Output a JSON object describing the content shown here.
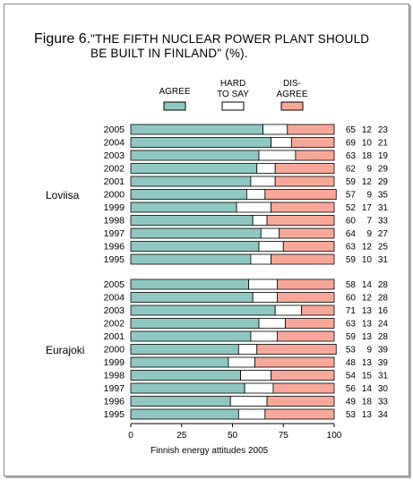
{
  "figure_label": "Figure 6.",
  "title_lines": [
    "\"THE FIFTH NUCLEAR POWER PLANT SHOULD",
    "BE BUILT IN FINLAND\" (%)."
  ],
  "legend": [
    {
      "lines": [
        "AGREE"
      ],
      "color": "#8fc7c2"
    },
    {
      "lines": [
        "HARD",
        "TO SAY"
      ],
      "color": "#ffffff"
    },
    {
      "lines": [
        "DIS-",
        "AGREE"
      ],
      "color": "#f8a898"
    }
  ],
  "footnote": "Finnish energy attitudes 2005",
  "chart_data": {
    "type": "bar",
    "orientation": "horizontal",
    "stacked": true,
    "xlim": [
      0,
      100
    ],
    "x_ticks": [
      "0",
      "25",
      "50",
      "75",
      "100"
    ],
    "groups": [
      {
        "name": "Loviisa",
        "categories": [
          "2005",
          "2004",
          "2003",
          "2002",
          "2001",
          "2000",
          "1999",
          "1998",
          "1997",
          "1996",
          "1995"
        ],
        "series": [
          {
            "name": "AGREE",
            "values": [
              65,
              69,
              63,
              62,
              59,
              57,
              52,
              60,
              64,
              63,
              59
            ]
          },
          {
            "name": "HARD TO SAY",
            "values": [
              12,
              10,
              18,
              9,
              12,
              9,
              17,
              7,
              9,
              12,
              10
            ]
          },
          {
            "name": "DIS-AGREE",
            "values": [
              23,
              21,
              19,
              29,
              29,
              35,
              31,
              33,
              27,
              25,
              31
            ]
          }
        ]
      },
      {
        "name": "Eurajoki",
        "categories": [
          "2005",
          "2004",
          "2003",
          "2002",
          "2001",
          "2000",
          "1999",
          "1998",
          "1997",
          "1996",
          "1995"
        ],
        "series": [
          {
            "name": "AGREE",
            "values": [
              58,
              60,
              71,
              63,
              59,
              53,
              48,
              54,
              56,
              49,
              53
            ]
          },
          {
            "name": "HARD TO SAY",
            "values": [
              14,
              12,
              13,
              13,
              13,
              9,
              13,
              15,
              14,
              18,
              13
            ]
          },
          {
            "name": "DIS-AGREE",
            "values": [
              28,
              28,
              16,
              24,
              28,
              39,
              39,
              31,
              30,
              33,
              34
            ]
          }
        ]
      }
    ]
  }
}
